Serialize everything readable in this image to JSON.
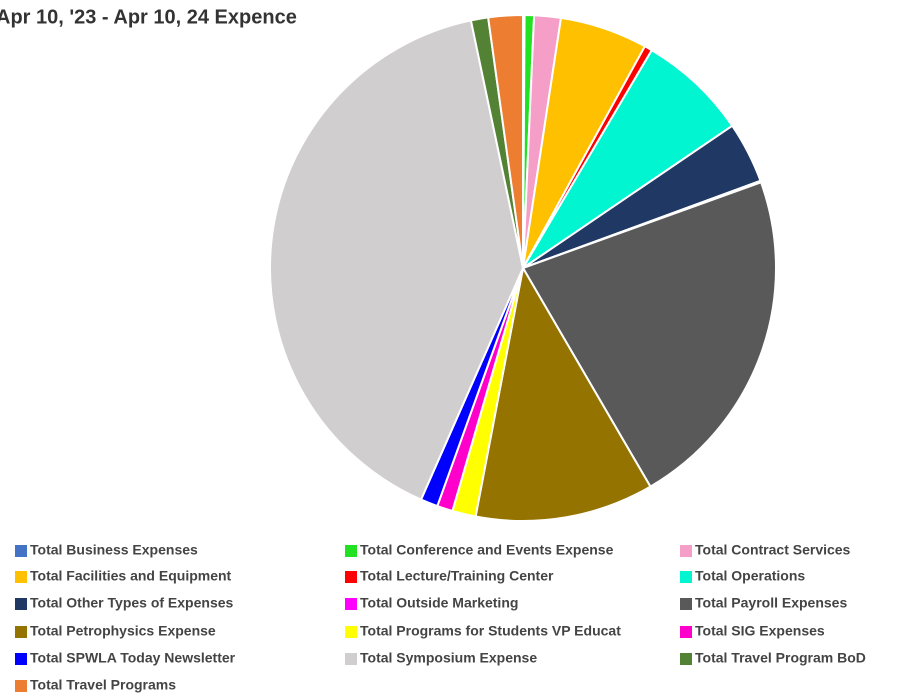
{
  "chart_data": {
    "type": "pie",
    "title": "Apr 10, '23 - Apr 10, 24 Expence",
    "categories": [
      "Total Business Expenses",
      "Total Conference and Events Expense",
      "Total Contract Services",
      "Total Facilities and Equipment",
      "Total Lecture/Training Center",
      "Total Operations",
      "Total Other Types of Expenses",
      "Total Outside Marketing",
      "Total Payroll Expenses",
      "Total Petrophysics Expense",
      "Total Programs for Students VP Educat",
      "Total SIG Expenses",
      "Total SPWLA Today Newsletter",
      "Total Symposium Expense",
      "Total Travel Program BoD",
      "Total Travel Programs"
    ],
    "values": [
      0.1,
      0.6,
      1.7,
      5.6,
      0.5,
      7.0,
      3.9,
      0.1,
      22.1,
      11.4,
      1.5,
      1.0,
      1.1,
      40.1,
      1.1,
      2.2
    ],
    "colors": [
      "#4472c4",
      "#22e022",
      "#f59ec8",
      "#ffc000",
      "#ff0000",
      "#00f5d0",
      "#203864",
      "#ff00ff",
      "#595959",
      "#957300",
      "#ffff00",
      "#ff00cc",
      "#0000ff",
      "#d0cece",
      "#548235",
      "#ed7d31"
    ],
    "legend": "bottom"
  }
}
